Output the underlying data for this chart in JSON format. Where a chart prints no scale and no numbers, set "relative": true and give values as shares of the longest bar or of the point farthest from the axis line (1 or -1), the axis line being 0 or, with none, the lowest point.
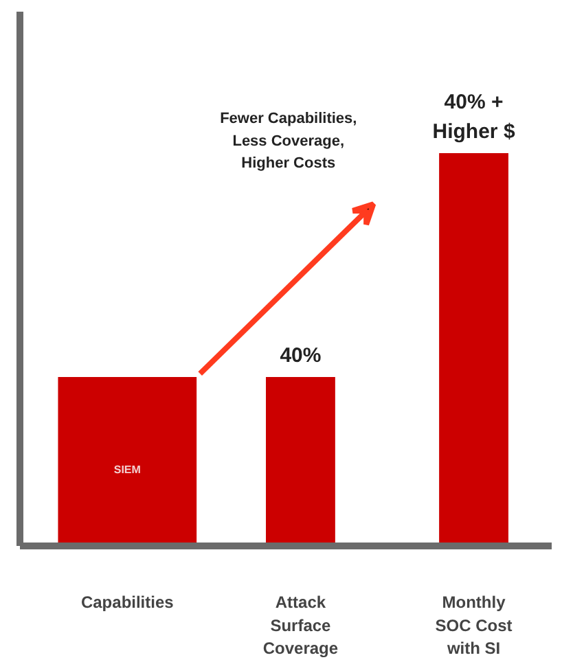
{
  "chart_data": {
    "type": "bar",
    "relative": true,
    "categories": [
      "Capabilities",
      "Attack Surface Coverage",
      "Monthly SOC Cost with SI"
    ],
    "values": [
      0.43,
      0.43,
      1
    ],
    "color": "#cc0000",
    "annotations": [
      "SIEM",
      "40%",
      "40% + Higher $",
      "Fewer Capabilities, Less Coverage, Higher Costs"
    ],
    "grid": false
  }
}
